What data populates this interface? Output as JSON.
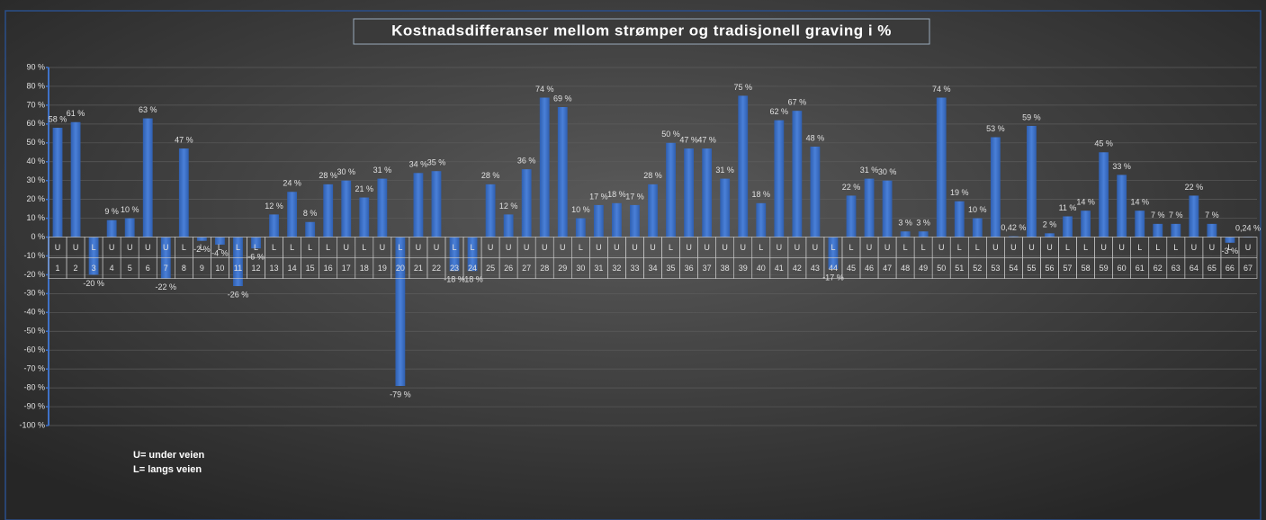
{
  "chart_data": {
    "type": "bar",
    "title": "Kostnadsdifferanser  mellom strømper og tradisjonell graving i  %",
    "categories": [
      "1",
      "2",
      "3",
      "4",
      "5",
      "6",
      "7",
      "8",
      "9",
      "10",
      "11",
      "12",
      "13",
      "14",
      "15",
      "16",
      "17",
      "18",
      "19",
      "20",
      "21",
      "22",
      "23",
      "24",
      "25",
      "26",
      "27",
      "28",
      "29",
      "30",
      "31",
      "32",
      "33",
      "34",
      "35",
      "36",
      "37",
      "38",
      "39",
      "40",
      "41",
      "42",
      "43",
      "44",
      "45",
      "46",
      "47",
      "48",
      "49",
      "50",
      "51",
      "52",
      "53",
      "54",
      "55",
      "56",
      "57",
      "58",
      "59",
      "60",
      "61",
      "62",
      "63",
      "64",
      "65",
      "66",
      "67"
    ],
    "groups": [
      "U",
      "U",
      "L",
      "U",
      "U",
      "U",
      "U",
      "L",
      "L",
      "L",
      "L",
      "L",
      "L",
      "L",
      "L",
      "L",
      "U",
      "L",
      "U",
      "L",
      "U",
      "U",
      "L",
      "L",
      "U",
      "U",
      "U",
      "U",
      "U",
      "L",
      "U",
      "U",
      "U",
      "U",
      "L",
      "U",
      "U",
      "U",
      "U",
      "L",
      "U",
      "U",
      "U",
      "L",
      "L",
      "U",
      "U",
      "L",
      "L",
      "U",
      "L",
      "L",
      "U",
      "U",
      "U",
      "U",
      "L",
      "L",
      "U",
      "U",
      "L",
      "L",
      "L",
      "U",
      "U",
      "L",
      "U"
    ],
    "values": [
      58,
      61,
      -20,
      9,
      10,
      63,
      -22,
      47,
      -2,
      -4,
      -26,
      -6,
      12,
      24,
      8,
      28,
      30,
      21,
      31,
      -79,
      34,
      35,
      -18,
      -18,
      28,
      12,
      36,
      74,
      69,
      10,
      17,
      18,
      17,
      28,
      50,
      47,
      47,
      31,
      75,
      18,
      62,
      67,
      48,
      -17,
      22,
      31,
      30,
      3,
      3,
      74,
      19,
      10,
      53,
      0.42,
      59,
      2,
      11,
      14,
      45,
      33,
      14,
      7,
      7,
      22,
      7,
      -3,
      0.24
    ],
    "value_labels": [
      "58 %",
      "61 %",
      "-20 %",
      "9 %",
      "10 %",
      "63 %",
      "-22 %",
      "47 %",
      "-2 %",
      "-4 %",
      "-26 %",
      "-6 %",
      "12 %",
      "24 %",
      "8 %",
      "28 %",
      "30 %",
      "21 %",
      "31 %",
      "-79 %",
      "34 %",
      "35 %",
      "-18 %",
      "-18 %",
      "28 %",
      "12 %",
      "36 %",
      "74 %",
      "69 %",
      "10 %",
      "17 %",
      "18 %",
      "17 %",
      "28 %",
      "50 %",
      "47 %",
      "47 %",
      "31 %",
      "75 %",
      "18 %",
      "62 %",
      "67 %",
      "48 %",
      "-17 %",
      "22 %",
      "31 %",
      "30 %",
      "3 %",
      "3 %",
      "74 %",
      "19 %",
      "10 %",
      "53 %",
      "0,42 %",
      "59 %",
      "2 %",
      "11 %",
      "14 %",
      "45 %",
      "33 %",
      "14 %",
      "7 %",
      "7 %",
      "22 %",
      "7 %",
      "-3 %",
      "0,24 %"
    ],
    "color": "#3f72c8",
    "ylim": [
      -100,
      90
    ],
    "yticks": [
      {
        "value": -100,
        "label": "-100 %"
      },
      {
        "value": -90,
        "label": "-90 %"
      },
      {
        "value": -80,
        "label": "-80 %"
      },
      {
        "value": -70,
        "label": "-70 %"
      },
      {
        "value": -60,
        "label": "-60 %"
      },
      {
        "value": -50,
        "label": "-50 %"
      },
      {
        "value": -40,
        "label": "-40 %"
      },
      {
        "value": -30,
        "label": "-30 %"
      },
      {
        "value": -20,
        "label": "-20 %"
      },
      {
        "value": -10,
        "label": "-10 %"
      },
      {
        "value": 0,
        "label": "0 %"
      },
      {
        "value": 10,
        "label": "10 %"
      },
      {
        "value": 20,
        "label": "20 %"
      },
      {
        "value": 30,
        "label": "30 %"
      },
      {
        "value": 40,
        "label": "40 %"
      },
      {
        "value": 50,
        "label": "50 %"
      },
      {
        "value": 60,
        "label": "60 %"
      },
      {
        "value": 70,
        "label": "70 %"
      },
      {
        "value": 80,
        "label": "80 %"
      },
      {
        "value": 90,
        "label": "90 %"
      }
    ],
    "grid": true,
    "annotations": [
      "U= under veien",
      "L= langs veien"
    ]
  }
}
